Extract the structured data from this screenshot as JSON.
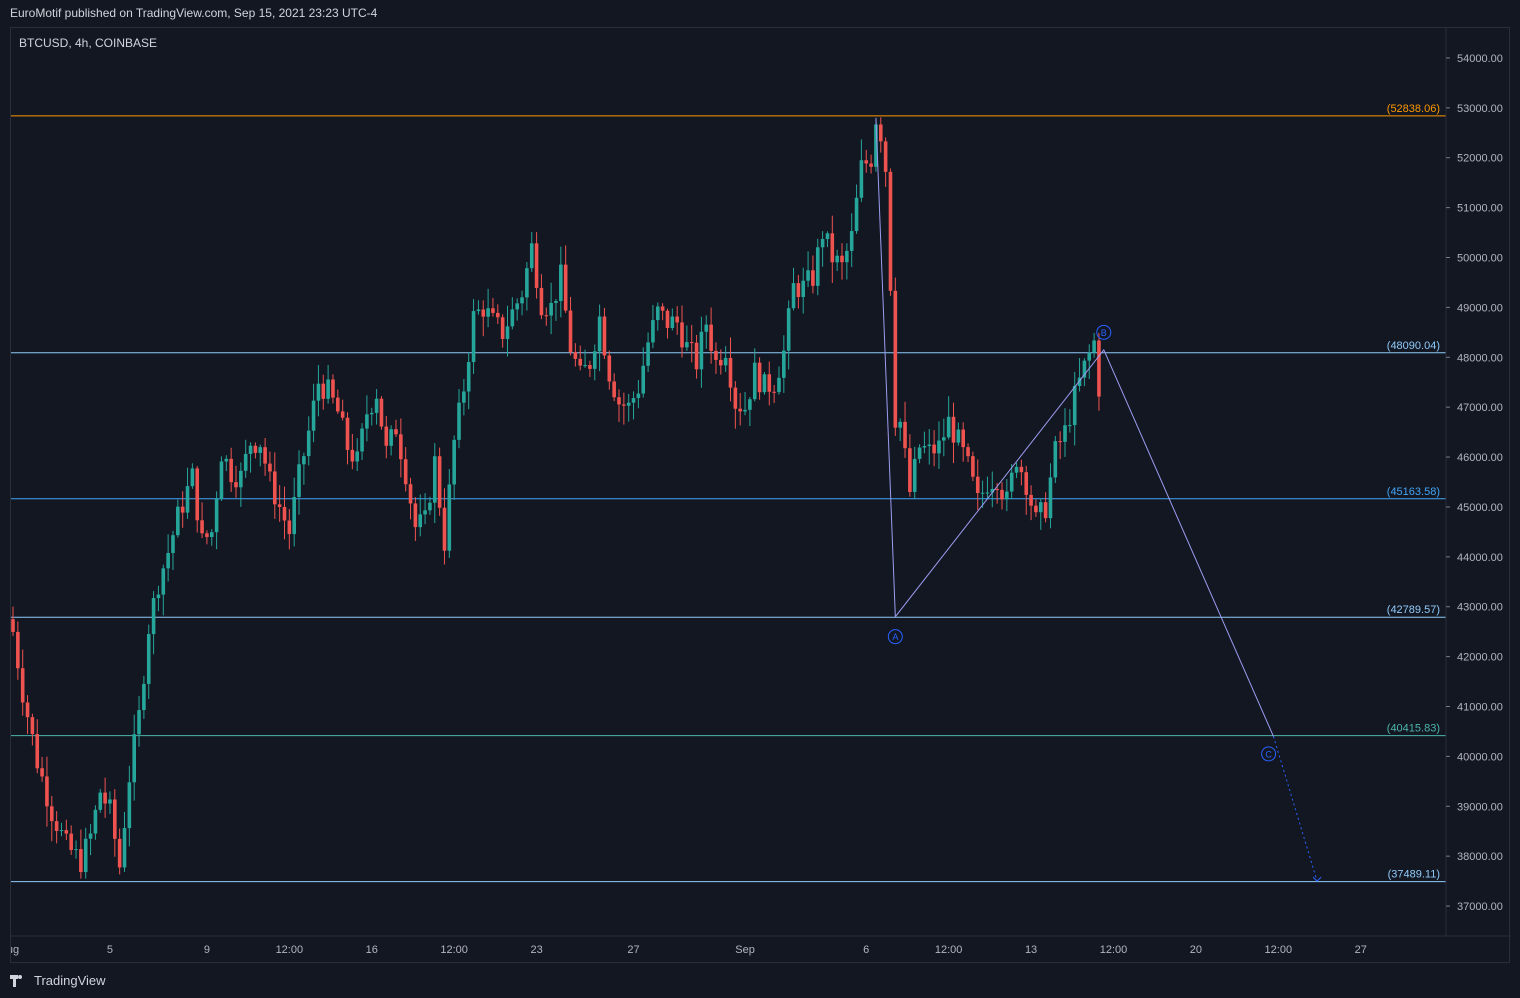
{
  "header": {
    "published_text": "EuroMotif published on TradingView.com, Sep 15, 2021 23:23 UTC-4"
  },
  "footer": {
    "brand": "TradingView"
  },
  "colors": {
    "background": "#131722",
    "up": "#26a69a",
    "down": "#ef5350",
    "resistance_top": "#ff9800",
    "level_light": "#90caf9",
    "level_mid": "#42a5f5",
    "level_teal": "#4db6ac",
    "wave": "#9c9cf0",
    "wave_label": "#2962ff"
  },
  "chart_data": {
    "type": "candlestick",
    "symbol_label": "BTCUSD, 4h, COINBASE",
    "y_range": [
      36400,
      54600
    ],
    "x_range_bars": [
      0,
      296
    ],
    "y_ticks": [
      "37000.00",
      "38000.00",
      "39000.00",
      "40000.00",
      "41000.00",
      "42000.00",
      "43000.00",
      "44000.00",
      "45000.00",
      "46000.00",
      "47000.00",
      "48000.00",
      "49000.00",
      "50000.00",
      "51000.00",
      "52000.00",
      "53000.00",
      "54000.00"
    ],
    "x_ticks": [
      {
        "label": "ug",
        "bar": 0
      },
      {
        "label": "5",
        "bar": 20
      },
      {
        "label": "9",
        "bar": 40
      },
      {
        "label": "12:00",
        "bar": 57
      },
      {
        "label": "16",
        "bar": 74
      },
      {
        "label": "12:00",
        "bar": 91
      },
      {
        "label": "23",
        "bar": 108
      },
      {
        "label": "27",
        "bar": 128
      },
      {
        "label": "Sep",
        "bar": 151
      },
      {
        "label": "6",
        "bar": 176
      },
      {
        "label": "12:00",
        "bar": 193
      },
      {
        "label": "13",
        "bar": 210
      },
      {
        "label": "12:00",
        "bar": 227
      },
      {
        "label": "20",
        "bar": 244
      },
      {
        "label": "12:00",
        "bar": 261
      },
      {
        "label": "27",
        "bar": 278
      }
    ],
    "price_levels": [
      {
        "value": 52838.06,
        "label": "(52838.06)",
        "color": "#ff9800"
      },
      {
        "value": 48090.04,
        "label": "(48090.04)",
        "color": "#90caf9"
      },
      {
        "value": 45163.58,
        "label": "(45163.58)",
        "color": "#42a5f5"
      },
      {
        "value": 42789.57,
        "label": "(42789.57)",
        "color": "#90caf9"
      },
      {
        "value": 40415.83,
        "label": "(40415.83)",
        "color": "#4db6ac"
      },
      {
        "value": 37489.11,
        "label": "(37489.11)",
        "color": "#90caf9"
      }
    ],
    "waves": [
      {
        "label": "A",
        "bar": 182,
        "price": 42400
      },
      {
        "label": "B",
        "bar": 225,
        "price": 48500
      },
      {
        "label": "C",
        "bar": 259,
        "price": 40050
      }
    ],
    "wave_path": [
      [
        178,
        52800
      ],
      [
        182,
        42800
      ],
      [
        225,
        48150
      ],
      [
        260,
        40400
      ]
    ],
    "wave_projection": [
      [
        260,
        40400
      ],
      [
        269,
        37500
      ]
    ],
    "anchors": [
      [
        0,
        42500
      ],
      [
        2,
        41300
      ],
      [
        5,
        39900
      ],
      [
        8,
        38900
      ],
      [
        11,
        38200
      ],
      [
        14,
        37900
      ],
      [
        16,
        38400
      ],
      [
        18,
        39300
      ],
      [
        20,
        38900
      ],
      [
        22,
        37800
      ],
      [
        24,
        39600
      ],
      [
        26,
        40800
      ],
      [
        28,
        42600
      ],
      [
        30,
        43500
      ],
      [
        32,
        44100
      ],
      [
        34,
        44800
      ],
      [
        37,
        45600
      ],
      [
        39,
        44300
      ],
      [
        41,
        44500
      ],
      [
        43,
        46100
      ],
      [
        45,
        45700
      ],
      [
        47,
        45600
      ],
      [
        49,
        46300
      ],
      [
        51,
        46300
      ],
      [
        53,
        45500
      ],
      [
        55,
        45000
      ],
      [
        57,
        44500
      ],
      [
        59,
        45600
      ],
      [
        61,
        46500
      ],
      [
        63,
        47500
      ],
      [
        65,
        47300
      ],
      [
        67,
        46900
      ],
      [
        69,
        46200
      ],
      [
        71,
        45900
      ],
      [
        73,
        46900
      ],
      [
        75,
        47300
      ],
      [
        77,
        46100
      ],
      [
        79,
        46600
      ],
      [
        81,
        45700
      ],
      [
        83,
        44600
      ],
      [
        85,
        44700
      ],
      [
        87,
        45900
      ],
      [
        89,
        44300
      ],
      [
        91,
        46300
      ],
      [
        93,
        47400
      ],
      [
        95,
        48800
      ],
      [
        97,
        49000
      ],
      [
        99,
        48700
      ],
      [
        101,
        48500
      ],
      [
        103,
        48900
      ],
      [
        105,
        49300
      ],
      [
        107,
        50200
      ],
      [
        109,
        49100
      ],
      [
        111,
        49000
      ],
      [
        113,
        49600
      ],
      [
        115,
        48200
      ],
      [
        117,
        47600
      ],
      [
        119,
        47900
      ],
      [
        121,
        48800
      ],
      [
        123,
        47700
      ],
      [
        125,
        47100
      ],
      [
        127,
        47000
      ],
      [
        129,
        47400
      ],
      [
        131,
        48300
      ],
      [
        133,
        48900
      ],
      [
        135,
        48700
      ],
      [
        137,
        48700
      ],
      [
        139,
        48200
      ],
      [
        141,
        47900
      ],
      [
        143,
        48700
      ],
      [
        145,
        47900
      ],
      [
        147,
        48200
      ],
      [
        149,
        47100
      ],
      [
        151,
        47000
      ],
      [
        153,
        47700
      ],
      [
        155,
        47400
      ],
      [
        157,
        47500
      ],
      [
        159,
        48100
      ],
      [
        161,
        49400
      ],
      [
        163,
        49400
      ],
      [
        165,
        49600
      ],
      [
        167,
        50500
      ],
      [
        169,
        50000
      ],
      [
        171,
        49800
      ],
      [
        173,
        50400
      ],
      [
        175,
        51800
      ],
      [
        177,
        52000
      ],
      [
        178,
        52800
      ],
      [
        179,
        52500
      ],
      [
        180,
        51800
      ],
      [
        181,
        49500
      ],
      [
        182,
        46800
      ],
      [
        183,
        46700
      ],
      [
        185,
        45300
      ],
      [
        187,
        46200
      ],
      [
        189,
        46100
      ],
      [
        191,
        46200
      ],
      [
        193,
        46700
      ],
      [
        195,
        46300
      ],
      [
        197,
        45800
      ],
      [
        199,
        45100
      ],
      [
        201,
        45500
      ],
      [
        203,
        45600
      ],
      [
        205,
        45100
      ],
      [
        207,
        46000
      ],
      [
        209,
        45500
      ],
      [
        211,
        44700
      ],
      [
        213,
        45000
      ],
      [
        215,
        46100
      ],
      [
        217,
        46500
      ],
      [
        219,
        47200
      ],
      [
        221,
        47800
      ],
      [
        223,
        48300
      ],
      [
        224,
        47400
      ]
    ]
  }
}
